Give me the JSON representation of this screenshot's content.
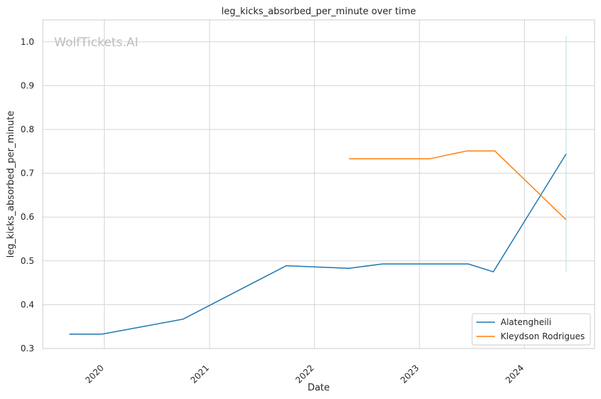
{
  "watermark": "WolfTickets.AI",
  "chart_data": {
    "type": "line",
    "title": "leg_kicks_absorbed_per_minute over time",
    "xlabel": "Date",
    "ylabel": "leg_kicks_absorbed_per_minute",
    "x_ticks": [
      "2020",
      "2021",
      "2022",
      "2023",
      "2024"
    ],
    "y_ticks": [
      "0.3",
      "0.4",
      "0.5",
      "0.6",
      "0.7",
      "0.8",
      "0.9",
      "1.0"
    ],
    "xlim": [
      "2019-06-01",
      "2024-09-01"
    ],
    "ylim": [
      0.3,
      1.05
    ],
    "grid": true,
    "legend_position": "lower-right",
    "series": [
      {
        "name": "Alatengheili",
        "color": "#1f77b4",
        "points": [
          [
            "2019-09-01",
            0.333
          ],
          [
            "2019-12-25",
            0.333
          ],
          [
            "2020-10-01",
            0.367
          ],
          [
            "2021-09-25",
            0.489
          ],
          [
            "2022-05-01",
            0.483
          ],
          [
            "2022-08-25",
            0.493
          ],
          [
            "2023-06-20",
            0.493
          ],
          [
            "2023-09-15",
            0.475
          ],
          [
            "2024-05-25",
            0.744
          ]
        ]
      },
      {
        "name": "Kleydson Rodrigues",
        "color": "#ff7f0e",
        "points": [
          [
            "2022-05-01",
            0.733
          ],
          [
            "2023-02-05",
            0.733
          ],
          [
            "2023-06-15",
            0.751
          ],
          [
            "2023-09-20",
            0.751
          ],
          [
            "2024-05-25",
            0.594
          ]
        ]
      }
    ],
    "error_bar": {
      "color": "#b9dce0",
      "x": "2024-05-25",
      "low": 0.475,
      "high": 1.013
    }
  }
}
